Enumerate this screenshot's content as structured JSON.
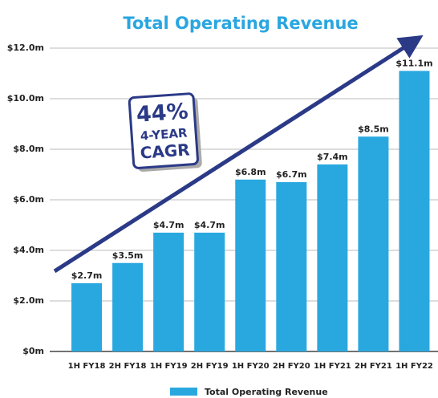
{
  "chart_data": {
    "type": "bar",
    "title": "Total Operating Revenue",
    "annotation": [
      "44%",
      "4-YEAR",
      "CAGR"
    ],
    "categories": [
      "1H FY18",
      "2H FY18",
      "1H FY19",
      "2H FY19",
      "1H FY20",
      "2H FY20",
      "1H FY21",
      "2H FY21",
      "1H FY22"
    ],
    "series": [
      {
        "name": "Total Operating Revenue",
        "color": "#29a8e0",
        "values": [
          2.7,
          3.5,
          4.7,
          4.7,
          6.8,
          6.7,
          7.4,
          8.5,
          11.1
        ],
        "value_labels": [
          "$2.7m",
          "$3.5m",
          "$4.7m",
          "$4.7m",
          "$6.8m",
          "$6.7m",
          "$7.4m",
          "$8.5m",
          "$11.1m"
        ]
      }
    ],
    "ylim": [
      0,
      12
    ],
    "yticks": [
      {
        "value": 0,
        "label": "$0m"
      },
      {
        "value": 2,
        "label": "$2.0m"
      },
      {
        "value": 4,
        "label": "$4.0m"
      },
      {
        "value": 6,
        "label": "$6.0m"
      },
      {
        "value": 8,
        "label": "$8.0m"
      },
      {
        "value": 10,
        "label": "$10.0m"
      },
      {
        "value": 12,
        "label": "$12.0m"
      }
    ],
    "grid": true,
    "legend": "bottom"
  }
}
